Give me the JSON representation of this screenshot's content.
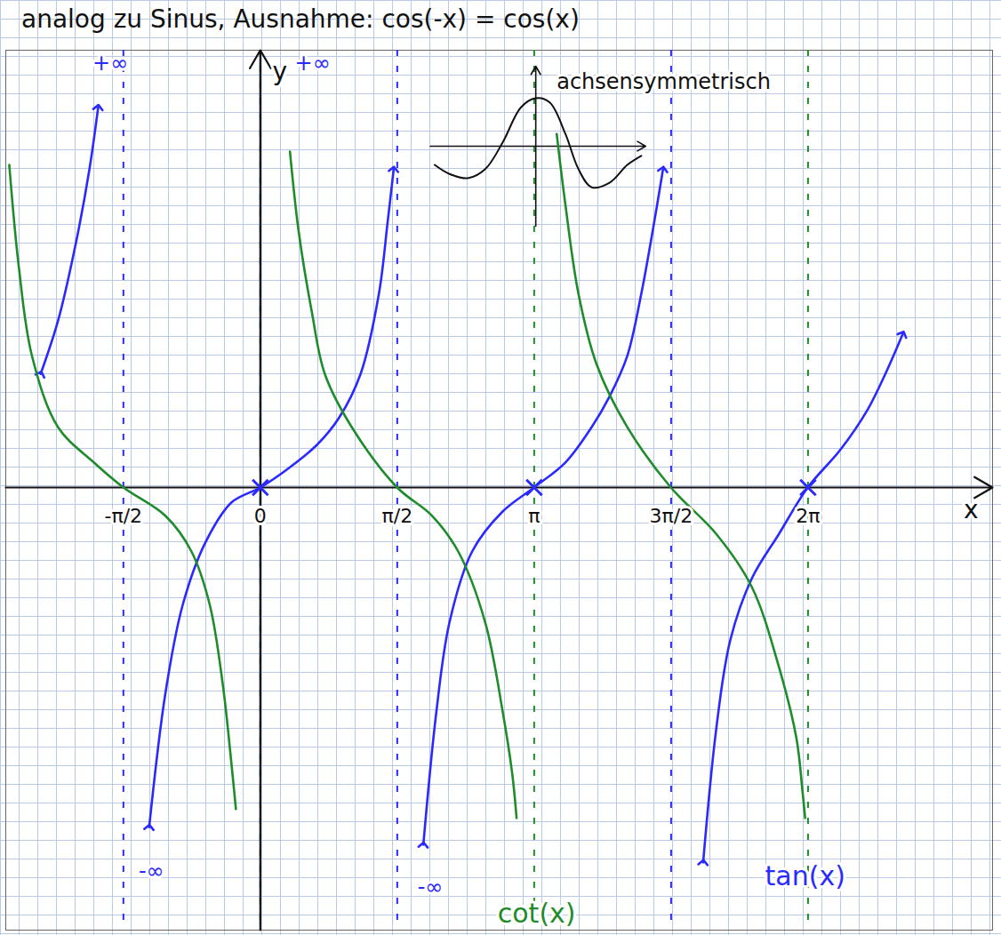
{
  "chart_data": {
    "type": "line",
    "title": "analog zu Sinus, Ausnahme: cos(-x) = cos(x)",
    "x_label": "x",
    "y_label": "y",
    "xlim": [
      -2.92,
      8.4
    ],
    "ylim": [
      -8.3,
      8.2
    ],
    "xticks": [
      {
        "value": -1.5708,
        "label": "-π/2"
      },
      0,
      {
        "value": 1.5708,
        "label": "π/2"
      },
      {
        "value": 3.1416,
        "label": "π"
      },
      {
        "value": 4.7124,
        "label": "3π/2"
      },
      {
        "value": 6.2832,
        "label": "2π"
      }
    ],
    "yticks": [
      0
    ],
    "tick_labels": "x",
    "series": [
      {
        "name": "tan(x)",
        "color": "#2a2aff",
        "marker": "arrow",
        "label_x": 6.25,
        "label_y": -7.3,
        "asymptotes": {
          "x": [
            -1.5708,
            1.5708,
            4.7124
          ],
          "line_style": "dashed"
        },
        "x": [
          -2.52,
          -2.32,
          -2.11,
          -1.96,
          -1.86,
          null,
          -1.275,
          -1.09,
          -0.89,
          -0.63,
          -0.33,
          0,
          0.34,
          0.65,
          0.9,
          1.15,
          1.36,
          1.46,
          1.53,
          null,
          1.87,
          2.02,
          2.17,
          2.43,
          2.78,
          3.14,
          3.5,
          3.8,
          4.01,
          4.21,
          4.37,
          4.5,
          4.62,
          null,
          5.08,
          5.23,
          5.39,
          5.64,
          5.95,
          6.28,
          6.66,
          6.97,
          7.17,
          7.37
        ],
        "values": [
          2.13,
          3.13,
          4.63,
          5.97,
          7.13,
          null,
          -6.37,
          -3.87,
          -2.2,
          -1.03,
          -0.28,
          0,
          0.38,
          0.8,
          1.3,
          2.13,
          3.63,
          4.97,
          5.97,
          null,
          -6.7,
          -4.2,
          -2.53,
          -1.2,
          -0.45,
          0,
          0.47,
          1.13,
          1.72,
          2.47,
          3.63,
          4.8,
          5.97,
          null,
          -7.03,
          -4.53,
          -2.87,
          -1.7,
          -0.87,
          0,
          0.72,
          1.47,
          2.13,
          2.88
        ]
      },
      {
        "name": "cot(x)",
        "color": "#1e8c2a",
        "label_x": 3.17,
        "label_y": -8.0,
        "asymptotes": {
          "x": [
            0,
            3.1416,
            6.2832
          ],
          "line_style": "dashed"
        },
        "x": [
          -2.88,
          -2.77,
          -2.62,
          -2.32,
          -1.91,
          -1.57,
          -1.09,
          -0.79,
          -0.58,
          -0.43,
          -0.33,
          -0.28,
          null,
          0.34,
          0.44,
          0.59,
          0.74,
          1.05,
          1.57,
          1.97,
          2.27,
          2.58,
          2.78,
          2.89,
          2.94,
          null,
          3.4,
          3.5,
          3.65,
          3.86,
          4.21,
          4.71,
          5.23,
          5.64,
          5.95,
          6.15,
          6.22,
          6.25
        ],
        "values": [
          6.05,
          4.13,
          2.47,
          1.13,
          0.47,
          0,
          -0.53,
          -1.2,
          -2.2,
          -3.7,
          -5.2,
          -6.03,
          null,
          6.3,
          4.8,
          3.3,
          2.13,
          1.13,
          0,
          -0.53,
          -1.2,
          -2.53,
          -4.2,
          -5.37,
          -6.2,
          null,
          6.63,
          5.3,
          3.63,
          2.3,
          1.13,
          0,
          -0.87,
          -1.87,
          -3.37,
          -4.7,
          -5.7,
          -6.2
        ]
      },
      {
        "type": "scatter",
        "color": "#2a2aff",
        "marker": "x",
        "x": [
          0,
          3.1416,
          6.2832
        ],
        "values": [
          0,
          0,
          0
        ]
      }
    ],
    "inset": {
      "color": "#111111",
      "xlim": [
        1.95,
        4.42
      ],
      "ylim": [
        4.9,
        7.9
      ],
      "x": [
        2.0,
        2.17,
        2.38,
        2.58,
        2.78,
        2.99,
        3.16,
        3.32,
        3.5,
        3.65,
        3.8,
        4.01,
        4.21,
        4.37
      ],
      "values": [
        6.05,
        5.88,
        5.8,
        5.97,
        6.47,
        7.13,
        7.3,
        7.22,
        6.63,
        5.97,
        5.63,
        5.72,
        6.05,
        6.22
      ]
    },
    "annotations": [
      {
        "text": "+∞",
        "x": -1.72,
        "y": 7.95,
        "color": "#2a2aff"
      },
      {
        "text": "+∞",
        "x": 0.6,
        "y": 7.95,
        "color": "#2a2aff"
      },
      {
        "text": "-∞",
        "x": -1.25,
        "y": -7.2,
        "color": "#2a2aff"
      },
      {
        "text": "-∞",
        "x": 1.95,
        "y": -7.5,
        "color": "#2a2aff"
      },
      {
        "text": "achsensymmetrisch",
        "x": 3.4,
        "y": 7.6,
        "color": "#111111"
      }
    ]
  }
}
